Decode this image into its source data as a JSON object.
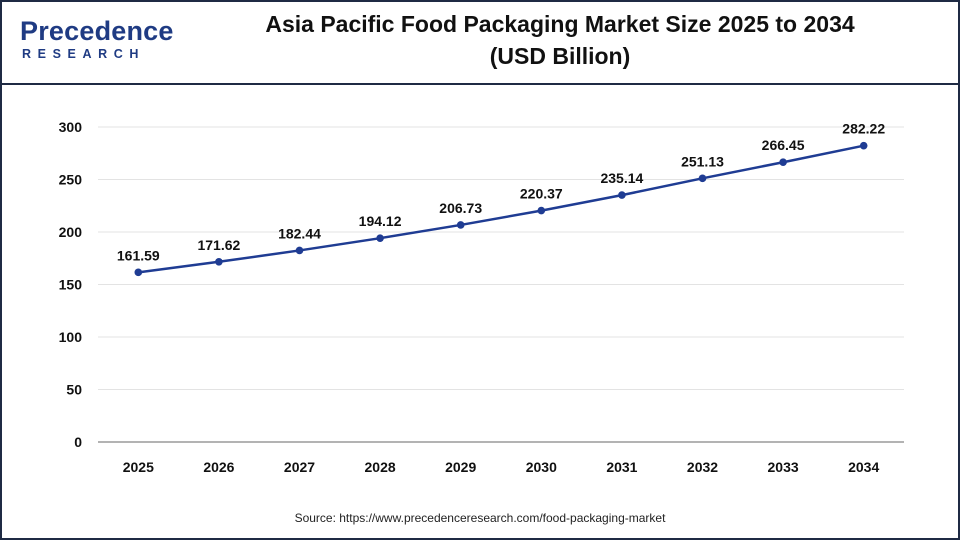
{
  "brand": {
    "name": "Precedence",
    "sub": "RESEARCH"
  },
  "title_line1": "Asia Pacific Food Packaging Market Size 2025 to 2034",
  "title_line2": "(USD Billion)",
  "source": "Source: https://www.precedenceresearch.com/food-packaging-market",
  "colors": {
    "line": "#1f3c93",
    "grid": "#e3e3e3",
    "axis": "#9a9a9a",
    "border": "#1f2a44"
  },
  "chart_data": {
    "type": "line",
    "title": "Asia Pacific Food Packaging Market Size 2025 to 2034 (USD Billion)",
    "categories": [
      "2025",
      "2026",
      "2027",
      "2028",
      "2029",
      "2030",
      "2031",
      "2032",
      "2033",
      "2034"
    ],
    "series": [
      {
        "values": [
          161.59,
          171.62,
          182.44,
          194.12,
          206.73,
          220.37,
          235.14,
          251.13,
          266.45,
          282.22
        ]
      }
    ],
    "data_labels": [
      "161.59",
      "171.62",
      "182.44",
      "194.12",
      "206.73",
      "220.37",
      "235.14",
      "251.13",
      "266.45",
      "282.22"
    ],
    "ylim": [
      0,
      300
    ],
    "yticks": [
      0,
      50,
      100,
      150,
      200,
      250,
      300
    ],
    "xlabel": "",
    "ylabel": "",
    "grid": true,
    "legend": "none"
  }
}
